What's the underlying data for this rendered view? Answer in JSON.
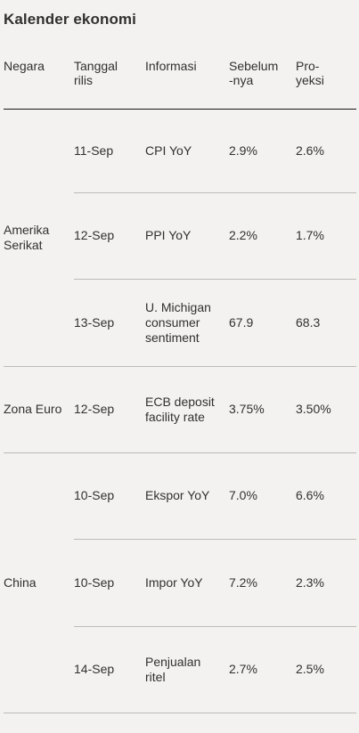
{
  "title": "Kalender ekonomi",
  "headers": {
    "country": "Negara",
    "date": "Tanggal rilis",
    "info": "Informasi",
    "previous": "Sebelum -nya",
    "projection": "Pro- yeksi"
  },
  "groups": [
    {
      "country": "Amerika Serikat",
      "rows": [
        {
          "date": "11-Sep",
          "info": "CPI YoY",
          "previous": "2.9%",
          "projection": "2.6%"
        },
        {
          "date": "12-Sep",
          "info": "PPI YoY",
          "previous": "2.2%",
          "projection": "1.7%"
        },
        {
          "date": "13-Sep",
          "info": "U. Michigan consumer sentiment",
          "previous": "67.9",
          "projection": "68.3"
        }
      ]
    },
    {
      "country": "Zona Euro",
      "rows": [
        {
          "date": "12-Sep",
          "info": "ECB deposit facility rate",
          "previous": "3.75%",
          "projection": "3.50%"
        }
      ]
    },
    {
      "country": "China",
      "rows": [
        {
          "date": "10-Sep",
          "info": "Ekspor YoY",
          "previous": "7.0%",
          "projection": "6.6%"
        },
        {
          "date": "10-Sep",
          "info": "Impor YoY",
          "previous": "7.2%",
          "projection": "2.3%"
        },
        {
          "date": "14-Sep",
          "info": "Penjualan ritel",
          "previous": "2.7%",
          "projection": "2.5%"
        }
      ]
    }
  ]
}
